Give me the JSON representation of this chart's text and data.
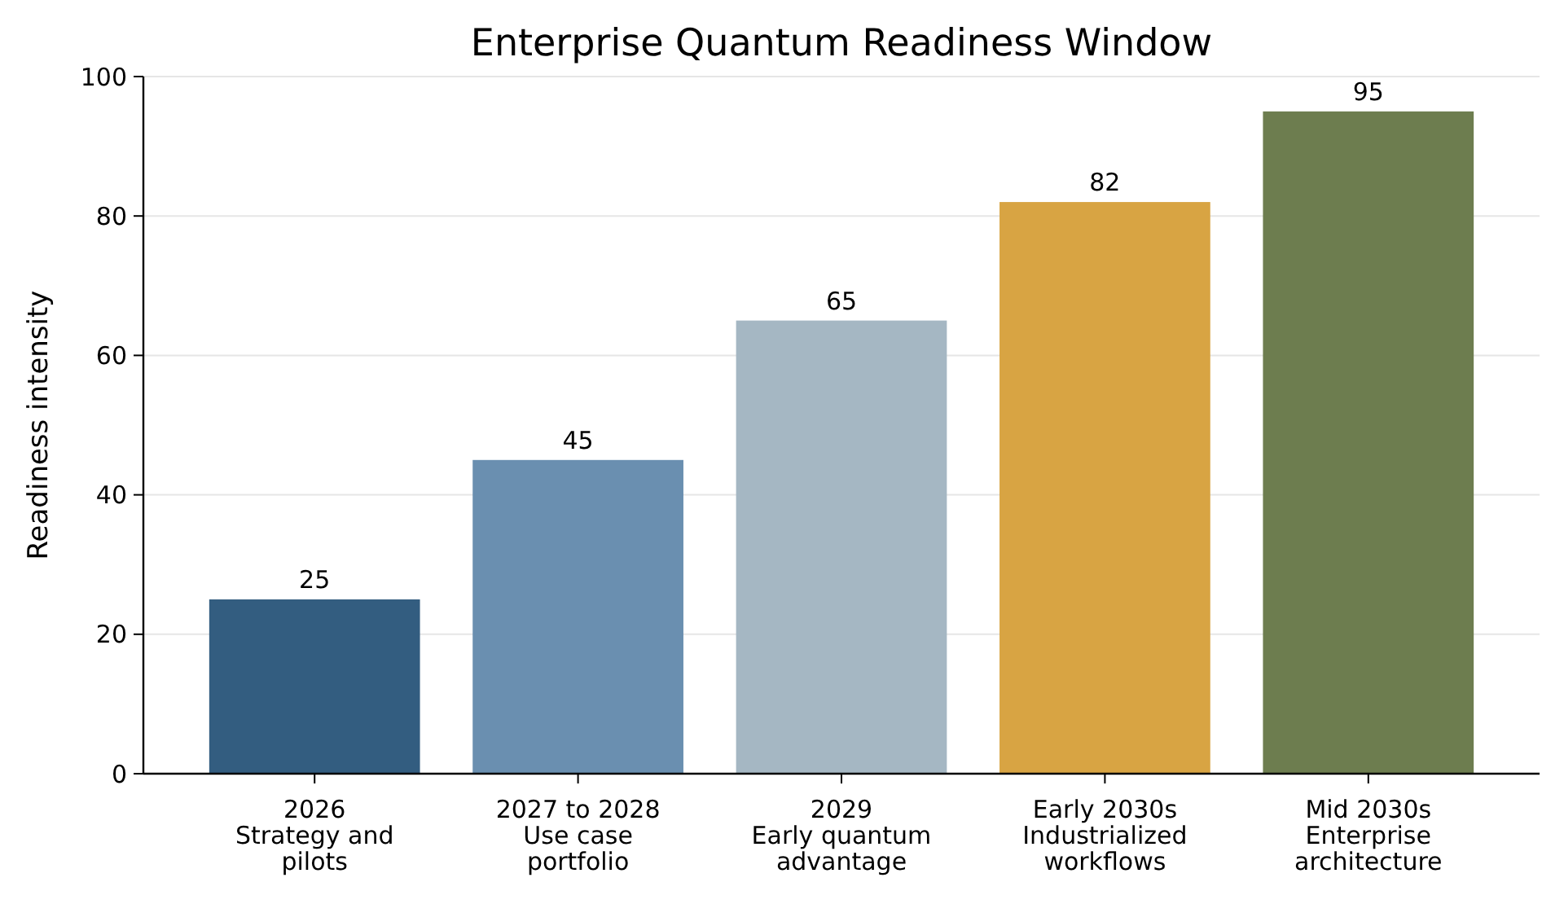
{
  "chart_data": {
    "type": "bar",
    "title": "Enterprise Quantum Readiness Window",
    "ylabel": "Readiness intensity",
    "categories": [
      "2026\nStrategy and\npilots",
      "2027 to 2028\nUse case\nportfolio",
      "2029\nEarly quantum\nadvantage",
      "Early 2030s\nIndustrialized\nworkflows",
      "Mid 2030s\nEnterprise\narchitecture"
    ],
    "values": [
      25,
      45,
      65,
      82,
      95
    ],
    "colors": [
      "#335d80",
      "#6a8fb0",
      "#a5b7c3",
      "#d8a443",
      "#6d7d4f"
    ],
    "ylim": [
      0,
      100
    ],
    "yticks": [
      0,
      20,
      40,
      60,
      80,
      100
    ],
    "grid": "y",
    "data_labels": true
  }
}
